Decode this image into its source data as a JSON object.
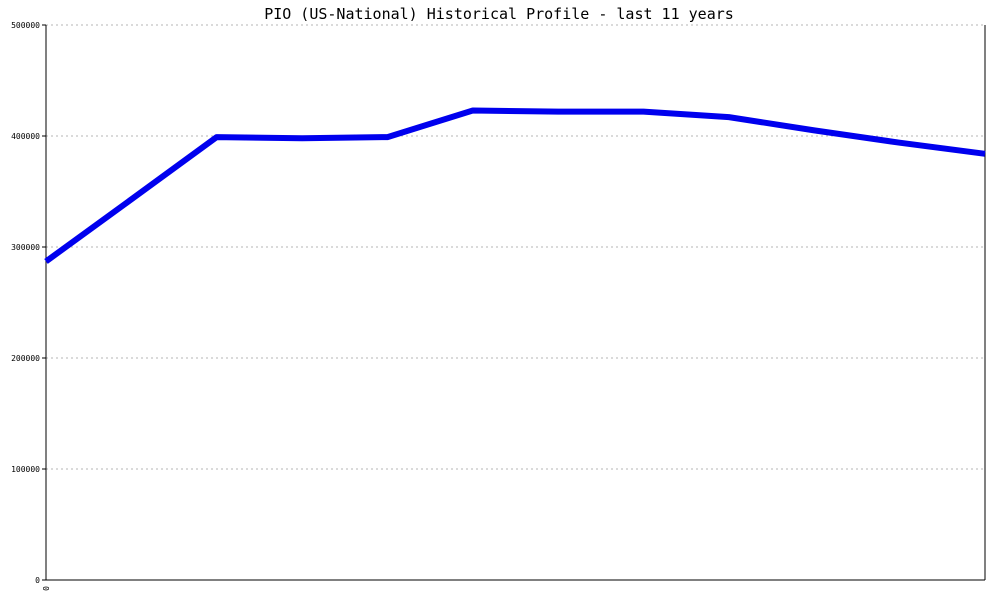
{
  "chart_data": {
    "type": "line",
    "title": "PIO (US-National) Historical Profile - last 11 years",
    "xlabel": "",
    "ylabel": "",
    "x_tick_labels": [
      "0"
    ],
    "x": [
      0,
      1,
      2,
      3,
      4,
      5,
      6,
      7,
      8,
      9,
      10,
      11
    ],
    "series": [
      {
        "values": [
          287000,
          343000,
          399000,
          398000,
          399000,
          423000,
          422000,
          422000,
          417000,
          405000,
          394000,
          384000
        ],
        "color": "#0000ee"
      }
    ],
    "ylim": [
      0,
      500000
    ],
    "y_ticks": [
      0,
      100000,
      200000,
      300000,
      400000,
      500000
    ],
    "y_tick_labels": [
      "0",
      "100000",
      "200000",
      "300000",
      "400000",
      "500000"
    ],
    "grid": true,
    "legend": "none"
  }
}
